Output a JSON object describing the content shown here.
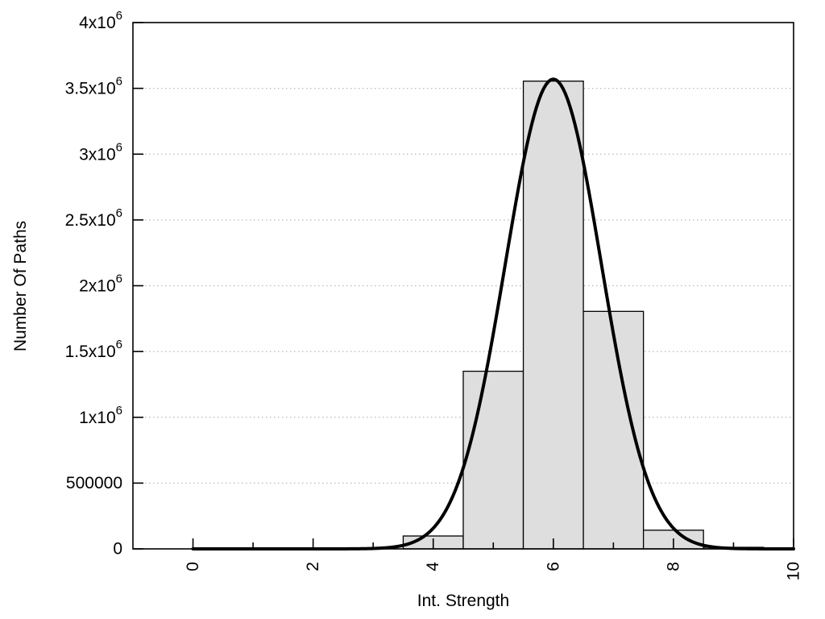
{
  "chart_data": {
    "type": "bar",
    "subtype": "histogram-with-fit-curve",
    "title": "",
    "xlabel": "Int. Strength",
    "ylabel": "Number Of Paths",
    "xlim": [
      -1,
      10
    ],
    "ylim": [
      0,
      4000000
    ],
    "grid": "horizontal-dotted",
    "legend": "none",
    "bars": [
      {
        "x0": 3.5,
        "x1": 4.5,
        "value": 98000
      },
      {
        "x0": 4.5,
        "x1": 5.5,
        "value": 1350000
      },
      {
        "x0": 5.5,
        "x1": 6.5,
        "value": 3555000
      },
      {
        "x0": 6.5,
        "x1": 7.5,
        "value": 1805000
      },
      {
        "x0": 7.5,
        "x1": 8.5,
        "value": 142000
      },
      {
        "x0": 8.5,
        "x1": 9.5,
        "value": 12000
      }
    ],
    "curve": {
      "shape": "gaussian",
      "amplitude": 3570000,
      "mean": 6.0,
      "sigma": 0.8,
      "x_start": 0,
      "x_end": 10
    },
    "x_ticks": {
      "major": [
        0,
        2,
        4,
        6,
        8,
        10
      ],
      "minor": [
        1,
        3,
        5,
        7,
        9
      ],
      "labels": [
        "0",
        "2",
        "4",
        "6",
        "8",
        "10"
      ],
      "label_rotation_deg": -90
    },
    "y_ticks": [
      {
        "value": 0,
        "label": "0"
      },
      {
        "value": 500000,
        "label": "500000"
      },
      {
        "value": 1000000,
        "label": "1x10^6"
      },
      {
        "value": 1500000,
        "label": "1.5x10^6"
      },
      {
        "value": 2000000,
        "label": "2x10^6"
      },
      {
        "value": 2500000,
        "label": "2.5x10^6"
      },
      {
        "value": 3000000,
        "label": "3x10^6"
      },
      {
        "value": 3500000,
        "label": "3.5x10^6"
      },
      {
        "value": 4000000,
        "label": "4x10^6"
      }
    ],
    "colors": {
      "bar_fill": "#dedede",
      "bar_stroke": "#000000",
      "curve": "#000000",
      "grid": "#b8b8b8",
      "border": "#000000",
      "background": "#ffffff",
      "text": "#000000"
    }
  }
}
